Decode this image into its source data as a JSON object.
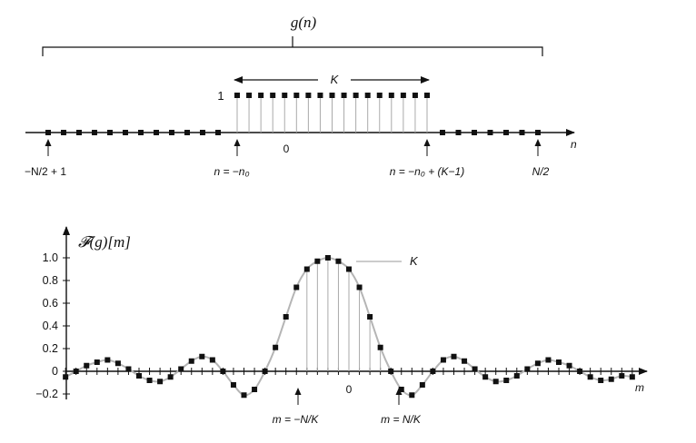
{
  "top_panel": {
    "function_label": "g(n)",
    "width_label": "K",
    "amplitude_label": "1",
    "origin_label": "0",
    "axis_label": "n",
    "markers": {
      "left_end": "−N/2 + 1",
      "pulse_start": "n = −n₀",
      "pulse_end": "n = −n₀ + (K−1)",
      "right_end": "N/2"
    },
    "signal": {
      "samples_left_zero": 12,
      "pulse_samples": 17,
      "samples_right_zero": 7,
      "pulse_value": 1
    }
  },
  "bottom_panel": {
    "function_label": "𝓕(g)[m]",
    "axis_label": "m",
    "origin_label": "0",
    "peak_label": "K",
    "markers": {
      "first_zero_left": "m = −N/K",
      "first_zero_right": "m = N/K"
    },
    "yticks": [
      "1.0",
      "0.8",
      "0.6",
      "0.4",
      "0.2",
      "0",
      "−0.2"
    ]
  },
  "chart_data": {
    "type": "scatter",
    "title": "𝓕(g)[m]",
    "xlabel": "m",
    "ylabel": "",
    "ylim": [
      -0.2,
      1.0
    ],
    "yticks": [
      1.0,
      0.8,
      0.6,
      0.4,
      0.2,
      0,
      -0.2
    ],
    "series": [
      {
        "name": "",
        "x": [
          -27,
          -26,
          -25,
          -24,
          -23,
          -22,
          -21,
          -20,
          -19,
          -18,
          -17,
          -16,
          -15,
          -14,
          -13,
          -12,
          -11,
          -10,
          -9,
          -8,
          -7,
          -6,
          -5,
          -4,
          -3,
          -2,
          -1,
          0,
          1,
          2,
          3,
          4,
          5,
          6,
          7,
          8,
          9,
          10,
          11,
          12,
          13,
          14,
          15,
          16,
          17,
          18,
          19,
          20,
          21,
          22,
          23,
          24,
          25,
          26,
          27
        ],
        "values": [
          -0.05,
          0.0,
          0.05,
          0.08,
          0.1,
          0.07,
          0.02,
          -0.04,
          -0.08,
          -0.09,
          -0.05,
          0.02,
          0.09,
          0.13,
          0.1,
          0.0,
          -0.12,
          -0.21,
          -0.16,
          0.0,
          0.21,
          0.48,
          0.74,
          0.9,
          0.97,
          1.0,
          0.97,
          0.9,
          0.74,
          0.48,
          0.21,
          0.0,
          -0.16,
          -0.21,
          -0.12,
          0.0,
          0.1,
          0.13,
          0.09,
          0.02,
          -0.05,
          -0.09,
          -0.08,
          -0.04,
          0.02,
          0.07,
          0.1,
          0.08,
          0.05,
          0.0,
          -0.05,
          -0.08,
          -0.07,
          -0.04,
          -0.05
        ]
      }
    ]
  }
}
